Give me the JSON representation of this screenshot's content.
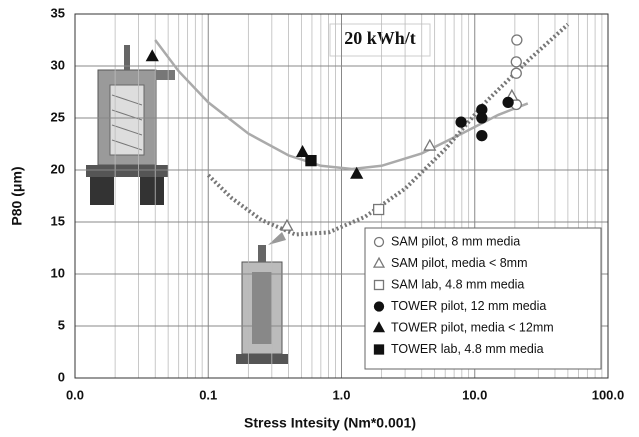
{
  "chart_data": {
    "type": "scatter",
    "xlabel": "Stress Intesity (Nm*0.001)",
    "ylabel": "P80 (μm)",
    "annotation": "20 kWh/t",
    "xscale": "log",
    "xlim": [
      0.01,
      100
    ],
    "xticks": [
      {
        "value": 0.01,
        "label": "0.0"
      },
      {
        "value": 0.1,
        "label": "0.1"
      },
      {
        "value": 1,
        "label": "1.0"
      },
      {
        "value": 10,
        "label": "10.0"
      },
      {
        "value": 100,
        "label": "100.0"
      }
    ],
    "ylim": [
      0,
      35
    ],
    "yticks": [
      0,
      5,
      10,
      15,
      20,
      25,
      30,
      35
    ],
    "grid": true,
    "legend": "lower right",
    "series": [
      {
        "name": "SAM pilot, 8 mm media",
        "color": "#777777",
        "marker": "circle",
        "filled": false,
        "x": [
          20.7,
          20.5,
          20.5,
          20.5
        ],
        "values": [
          32.5,
          30.4,
          29.3,
          26.3
        ]
      },
      {
        "name": "SAM pilot, media < 8mm",
        "color": "#777777",
        "marker": "triangle",
        "filled": false,
        "x": [
          0.39,
          4.6,
          19
        ],
        "values": [
          14.6,
          22.3,
          27.1
        ]
      },
      {
        "name": "SAM lab, 4.8 mm media",
        "color": "#777777",
        "marker": "square",
        "filled": false,
        "x": [
          1.9
        ],
        "values": [
          16.2
        ]
      },
      {
        "name": "TOWER pilot, 12 mm media",
        "color": "#111111",
        "marker": "circle",
        "filled": true,
        "x": [
          7.9,
          11.3,
          11.3,
          11.3,
          17.8
        ],
        "values": [
          24.6,
          25.8,
          25.0,
          23.3,
          26.5
        ]
      },
      {
        "name": "TOWER pilot, media < 12mm",
        "color": "#111111",
        "marker": "triangle",
        "filled": true,
        "x": [
          0.038,
          0.51,
          1.3
        ],
        "values": [
          30.9,
          21.7,
          19.6
        ]
      },
      {
        "name": "TOWER lab, 4.8 mm media",
        "color": "#111111",
        "marker": "square",
        "filled": true,
        "x": [
          0.59
        ],
        "values": [
          20.9
        ]
      }
    ],
    "curves": [
      {
        "style": "solid",
        "color": "#aaaaaa",
        "x": [
          0.04,
          0.06,
          0.1,
          0.2,
          0.4,
          0.7,
          1.2,
          2,
          4,
          8,
          15,
          25
        ],
        "values": [
          32.5,
          29.5,
          26.5,
          23.5,
          21.4,
          20.4,
          20.1,
          20.4,
          21.6,
          23.5,
          25.3,
          26.4
        ]
      },
      {
        "style": "dotted",
        "color": "#777777",
        "x": [
          0.1,
          0.15,
          0.25,
          0.45,
          0.8,
          1.5,
          3,
          6,
          12,
          25,
          50
        ],
        "values": [
          19.5,
          17.3,
          15.2,
          13.8,
          14.0,
          15.5,
          18.2,
          22,
          26.5,
          30.5,
          34
        ]
      }
    ]
  }
}
